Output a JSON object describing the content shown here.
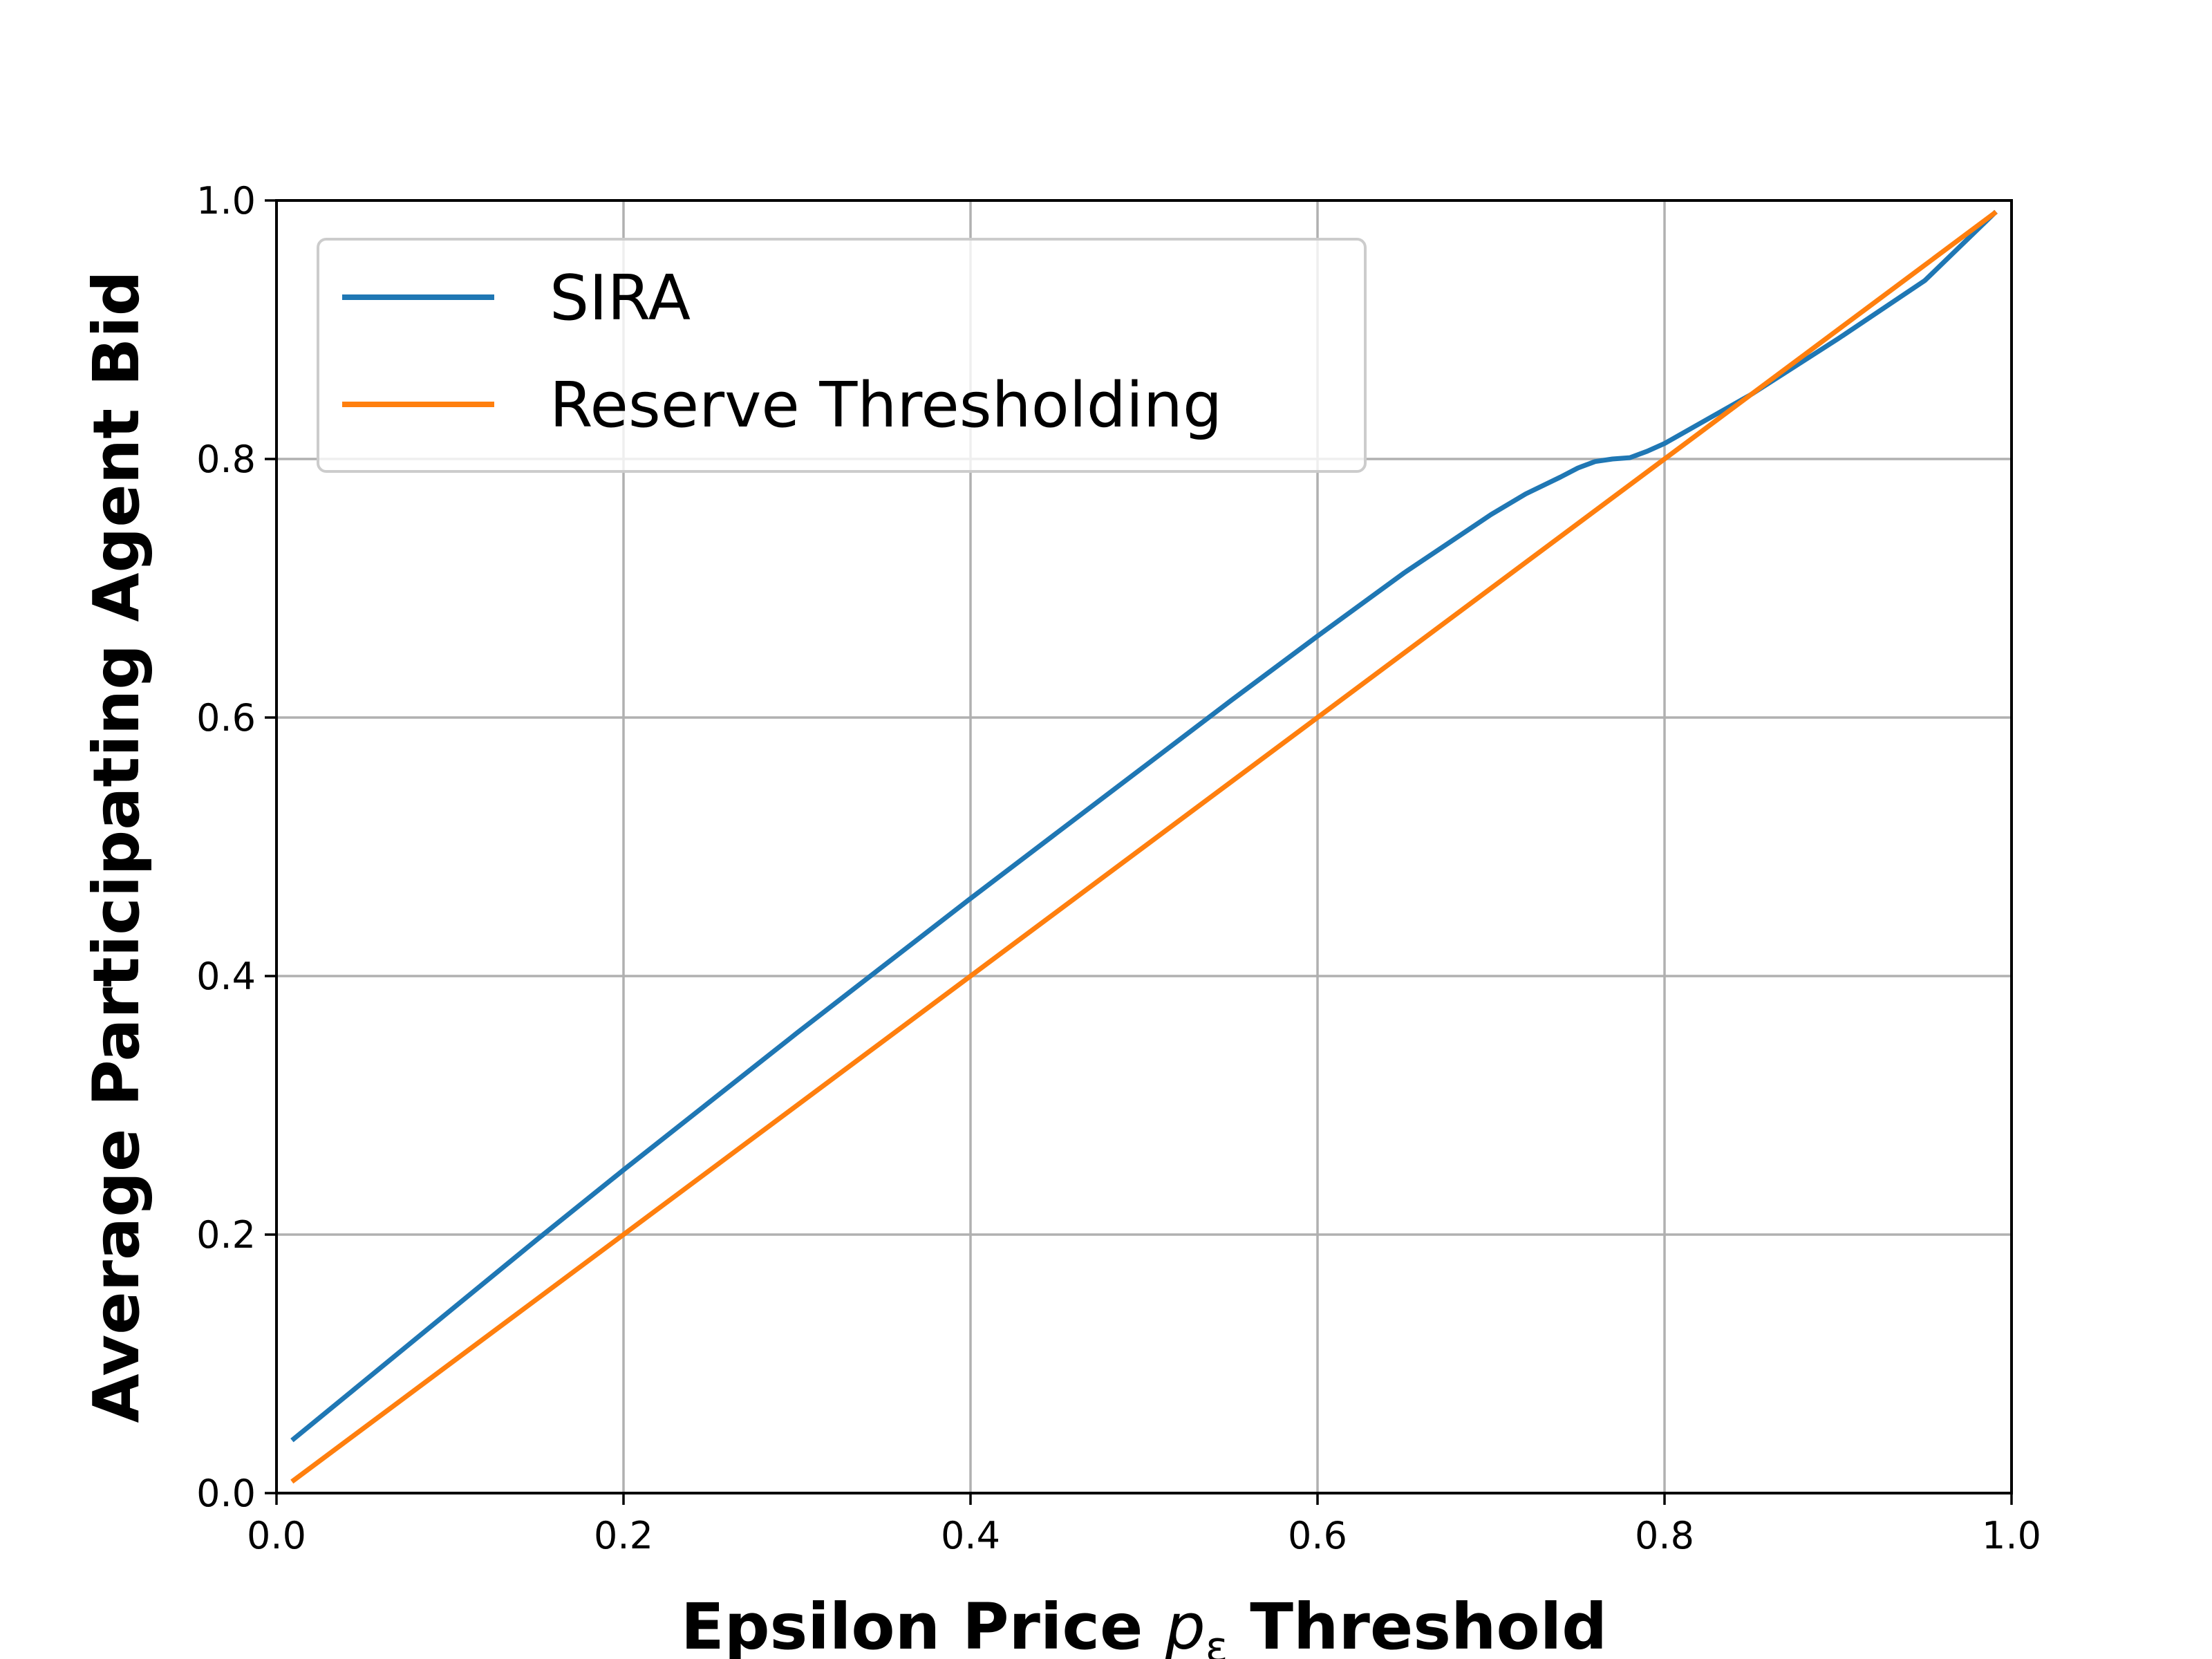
{
  "chart_data": {
    "type": "line",
    "title": "",
    "xlabel": {
      "prefix": "Epsilon Price ",
      "symbol": "p",
      "subscript": "ε",
      "suffix": " Threshold"
    },
    "ylabel": "Average Participating Agent Bid",
    "xlim": [
      0.0,
      1.0
    ],
    "ylim": [
      0.0,
      1.0
    ],
    "xticks": [
      0.0,
      0.2,
      0.4,
      0.6,
      0.8,
      1.0
    ],
    "yticks": [
      0.0,
      0.2,
      0.4,
      0.6,
      0.8,
      1.0
    ],
    "xtick_labels": [
      "0.0",
      "0.2",
      "0.4",
      "0.6",
      "0.8",
      "1.0"
    ],
    "ytick_labels": [
      "0.0",
      "0.2",
      "0.4",
      "0.6",
      "0.8",
      "1.0"
    ],
    "grid": true,
    "legend_position": "top-left",
    "series": [
      {
        "name": "SIRA",
        "color": "#1f77b4",
        "x": [
          0.01,
          0.05,
          0.1,
          0.15,
          0.2,
          0.25,
          0.3,
          0.35,
          0.4,
          0.45,
          0.5,
          0.55,
          0.6,
          0.65,
          0.7,
          0.72,
          0.74,
          0.75,
          0.76,
          0.77,
          0.78,
          0.79,
          0.8,
          0.85,
          0.9,
          0.95,
          0.99
        ],
        "y": [
          0.042,
          0.086,
          0.141,
          0.196,
          0.25,
          0.303,
          0.356,
          0.408,
          0.46,
          0.511,
          0.562,
          0.613,
          0.663,
          0.712,
          0.757,
          0.773,
          0.786,
          0.793,
          0.798,
          0.8,
          0.801,
          0.806,
          0.812,
          0.85,
          0.893,
          0.938,
          0.99
        ]
      },
      {
        "name": "Reserve Thresholding",
        "color": "#ff7f0e",
        "x": [
          0.01,
          0.99
        ],
        "y": [
          0.01,
          0.99
        ]
      }
    ]
  }
}
